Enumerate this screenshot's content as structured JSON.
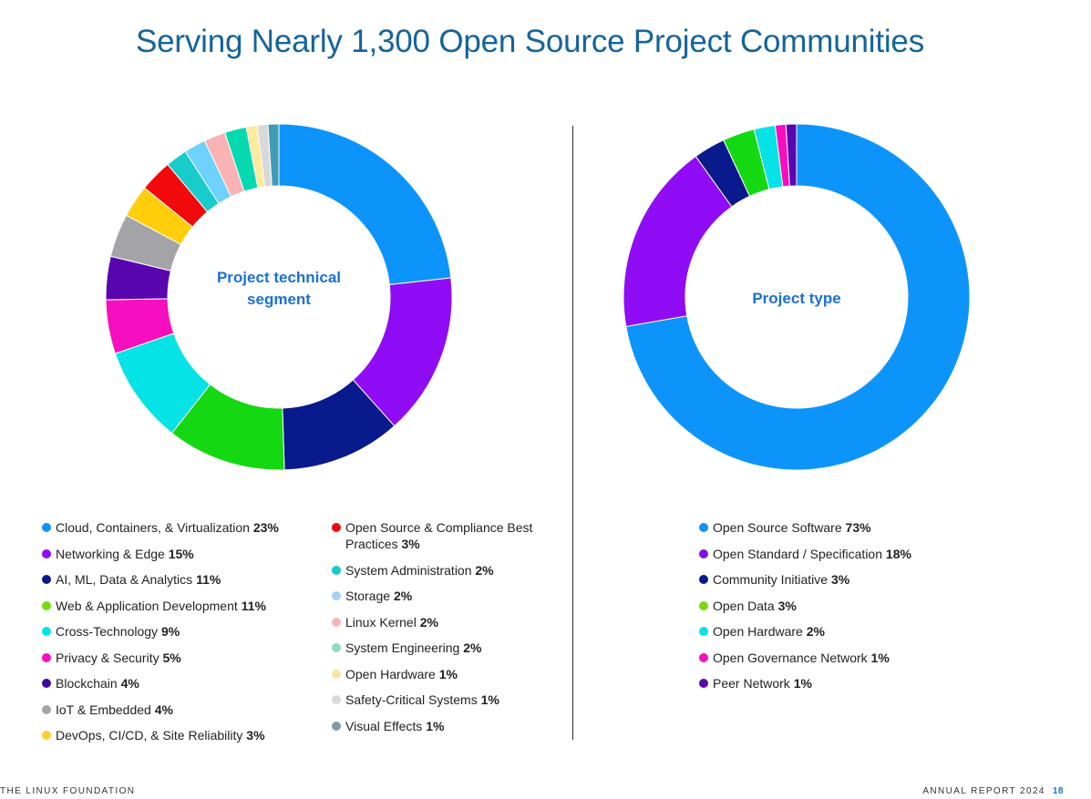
{
  "page": {
    "title": "Serving Nearly 1,300 Open Source Project Communities",
    "footer_left": "THE LINUX FOUNDATION",
    "footer_right": "ANNUAL REPORT 2024",
    "page_number": "18"
  },
  "chart_data": [
    {
      "type": "pie",
      "subtype": "donut",
      "title": "Project technical segment",
      "categories": [
        "Cloud, Containers, & Virtualization",
        "Networking & Edge",
        "AI, ML, Data & Analytics",
        "Web & Application Development",
        "Cross-Technology",
        "Privacy & Security",
        "Blockchain",
        "IoT & Embedded",
        "DevOps, CI/CD, & Site Reliability",
        "Open Source & Compliance Best Practices",
        "System Administration",
        "Storage",
        "Linux Kernel",
        "System Engineering",
        "Open Hardware",
        "Safety-Critical Systems",
        "Visual Effects"
      ],
      "values": [
        23,
        15,
        11,
        11,
        9,
        5,
        4,
        4,
        3,
        3,
        2,
        2,
        2,
        2,
        1,
        1,
        1
      ],
      "labels": [
        "23%",
        "15%",
        "11%",
        "11%",
        "9%",
        "5%",
        "4%",
        "4%",
        "3%",
        "3%",
        "2%",
        "2%",
        "2%",
        "2%",
        "1%",
        "1%",
        "1%"
      ],
      "colors": [
        "#0d94fb",
        "#8f0cf4",
        "#081a8c",
        "#14d812",
        "#06e3e6",
        "#f50fbf",
        "#5906b0",
        "#a4a3a8",
        "#fece0a",
        "#f2090b",
        "#18cccb",
        "#6ed1fe",
        "#fab3b4",
        "#06d8b0",
        "#fcea9d",
        "#d9d9d9",
        "#3f9cb6"
      ],
      "legend_colors": [
        "#0d94fb",
        "#8f0cf4",
        "#081a8c",
        "#7ad90e",
        "#06e3e6",
        "#f50fbf",
        "#3e08a0",
        "#a4a3a8",
        "#fece2f",
        "#f2090b",
        "#18cccb",
        "#a6cff5",
        "#fab3b4",
        "#8fdbbb",
        "#fce5a0",
        "#d9d9d9",
        "#7c9ca8"
      ]
    },
    {
      "type": "pie",
      "subtype": "donut",
      "title": "Project type",
      "categories": [
        "Open Source Software",
        "Open Standard / Specification",
        "Community Initiative",
        "Open Data",
        "Open Hardware",
        "Open Governance Network",
        "Peer Network"
      ],
      "values": [
        73,
        18,
        3,
        3,
        2,
        1,
        1
      ],
      "labels": [
        "73%",
        "18%",
        "3%",
        "3%",
        "2%",
        "1%",
        "1%"
      ],
      "colors": [
        "#0d94fb",
        "#8f0cf4",
        "#081a8c",
        "#14d812",
        "#06e3e6",
        "#f50fbf",
        "#5906b0"
      ],
      "legend_colors": [
        "#0d94fb",
        "#7b14ea",
        "#081a8c",
        "#7ad90e",
        "#06e3e6",
        "#f50fbf",
        "#5906b0"
      ]
    }
  ]
}
